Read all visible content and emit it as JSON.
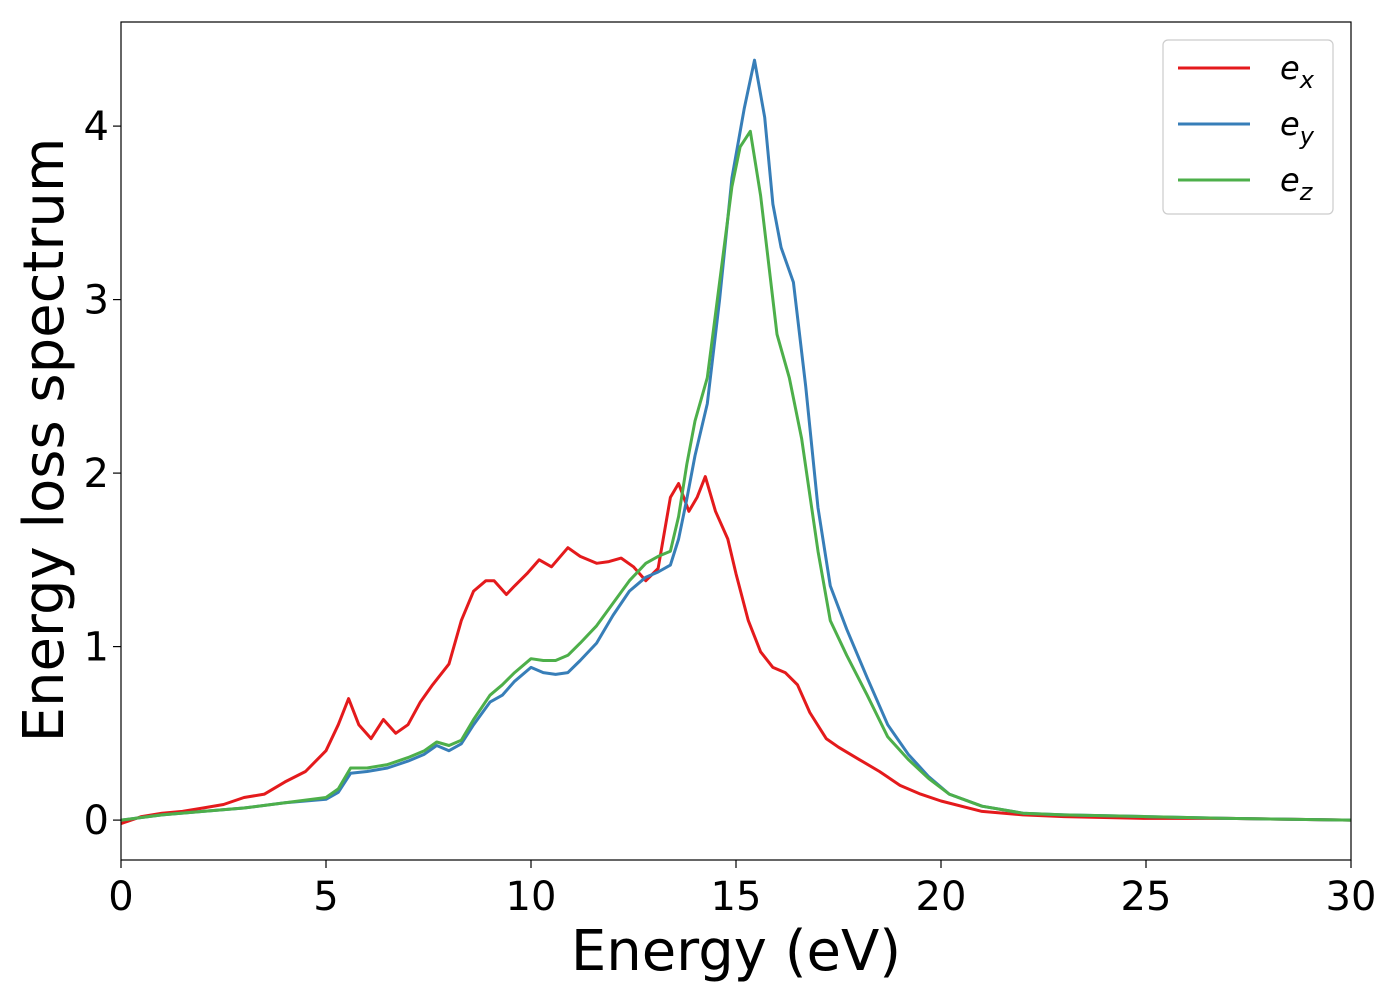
{
  "chart_data": {
    "type": "line",
    "title": "",
    "xlabel": "Energy (eV)",
    "ylabel": "Energy loss spectrum",
    "xlim": [
      0,
      30
    ],
    "ylim": [
      -0.23,
      4.6
    ],
    "xticks": [
      0,
      5,
      10,
      15,
      20,
      25,
      30
    ],
    "yticks": [
      0,
      1,
      2,
      3,
      4
    ],
    "grid": false,
    "legend": "top-right",
    "series": [
      {
        "name": "e_x",
        "label_base": "e",
        "label_sub": "x",
        "color": "#e41a1c",
        "x": [
          0,
          0.5,
          1,
          1.5,
          2,
          2.5,
          3,
          3.5,
          4,
          4.5,
          5,
          5.3,
          5.55,
          5.8,
          6.1,
          6.4,
          6.7,
          7,
          7.3,
          7.6,
          8,
          8.3,
          8.6,
          8.9,
          9.1,
          9.4,
          9.6,
          9.9,
          10.2,
          10.5,
          10.9,
          11.2,
          11.6,
          11.9,
          12.2,
          12.5,
          12.8,
          13.1,
          13.4,
          13.6,
          13.85,
          14.05,
          14.25,
          14.5,
          14.8,
          15,
          15.3,
          15.6,
          15.9,
          16.2,
          16.5,
          16.8,
          17.2,
          17.5,
          18,
          18.5,
          19,
          19.5,
          20,
          21,
          22,
          23,
          25,
          27,
          30
        ],
        "y": [
          -0.02,
          0.02,
          0.04,
          0.05,
          0.07,
          0.09,
          0.13,
          0.15,
          0.22,
          0.28,
          0.4,
          0.55,
          0.7,
          0.55,
          0.47,
          0.58,
          0.5,
          0.55,
          0.68,
          0.78,
          0.9,
          1.15,
          1.32,
          1.38,
          1.38,
          1.3,
          1.35,
          1.42,
          1.5,
          1.46,
          1.57,
          1.52,
          1.48,
          1.49,
          1.51,
          1.46,
          1.38,
          1.45,
          1.86,
          1.94,
          1.78,
          1.86,
          1.98,
          1.78,
          1.62,
          1.42,
          1.15,
          0.97,
          0.88,
          0.85,
          0.78,
          0.62,
          0.47,
          0.42,
          0.35,
          0.28,
          0.2,
          0.15,
          0.11,
          0.05,
          0.03,
          0.02,
          0.01,
          0.01,
          0.0
        ]
      },
      {
        "name": "e_y",
        "label_base": "e",
        "label_sub": "y",
        "color": "#377eb8",
        "x": [
          0,
          1,
          2,
          3,
          4,
          5,
          5.3,
          5.6,
          6,
          6.5,
          7,
          7.4,
          7.7,
          8,
          8.3,
          8.6,
          9,
          9.3,
          9.6,
          10,
          10.3,
          10.6,
          10.9,
          11.2,
          11.6,
          12,
          12.4,
          12.8,
          13.1,
          13.4,
          13.6,
          13.8,
          14,
          14.3,
          14.6,
          14.9,
          15.2,
          15.45,
          15.7,
          15.9,
          16.1,
          16.4,
          16.7,
          17,
          17.3,
          17.7,
          18.2,
          18.7,
          19.2,
          19.7,
          20.2,
          21,
          22,
          23,
          25,
          27,
          30
        ],
        "y": [
          0.0,
          0.03,
          0.05,
          0.07,
          0.1,
          0.12,
          0.16,
          0.27,
          0.28,
          0.3,
          0.34,
          0.38,
          0.43,
          0.4,
          0.44,
          0.55,
          0.68,
          0.72,
          0.8,
          0.88,
          0.85,
          0.84,
          0.85,
          0.92,
          1.02,
          1.18,
          1.32,
          1.4,
          1.43,
          1.47,
          1.62,
          1.85,
          2.1,
          2.4,
          3.0,
          3.7,
          4.1,
          4.38,
          4.05,
          3.55,
          3.3,
          3.1,
          2.5,
          1.8,
          1.35,
          1.1,
          0.82,
          0.55,
          0.38,
          0.25,
          0.15,
          0.08,
          0.04,
          0.03,
          0.02,
          0.01,
          0.0
        ]
      },
      {
        "name": "e_z",
        "label_base": "e",
        "label_sub": "z",
        "color": "#4daf4a",
        "x": [
          0,
          1,
          2,
          3,
          4,
          5,
          5.3,
          5.6,
          6,
          6.5,
          7,
          7.4,
          7.7,
          8,
          8.3,
          8.6,
          9,
          9.3,
          9.6,
          10,
          10.3,
          10.6,
          10.9,
          11.2,
          11.6,
          12,
          12.4,
          12.8,
          13.1,
          13.4,
          13.6,
          13.8,
          14,
          14.3,
          14.6,
          14.9,
          15.1,
          15.35,
          15.6,
          15.8,
          16.0,
          16.3,
          16.6,
          17,
          17.3,
          17.7,
          18.2,
          18.7,
          19.2,
          19.7,
          20.2,
          21,
          22,
          23,
          25,
          27,
          30
        ],
        "y": [
          0.0,
          0.03,
          0.05,
          0.07,
          0.1,
          0.13,
          0.18,
          0.3,
          0.3,
          0.32,
          0.36,
          0.4,
          0.45,
          0.43,
          0.46,
          0.58,
          0.72,
          0.78,
          0.85,
          0.93,
          0.92,
          0.92,
          0.95,
          1.02,
          1.12,
          1.25,
          1.38,
          1.48,
          1.52,
          1.55,
          1.75,
          2.05,
          2.3,
          2.55,
          3.1,
          3.65,
          3.88,
          3.97,
          3.6,
          3.2,
          2.8,
          2.55,
          2.2,
          1.55,
          1.15,
          0.95,
          0.72,
          0.48,
          0.35,
          0.24,
          0.15,
          0.08,
          0.04,
          0.03,
          0.02,
          0.01,
          0.0
        ]
      }
    ]
  }
}
